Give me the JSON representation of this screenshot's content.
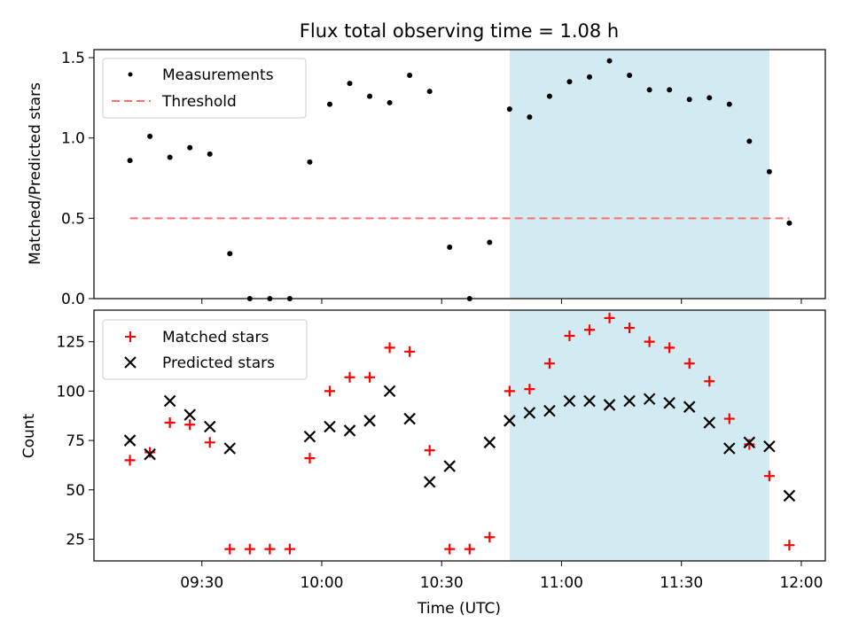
{
  "title": "Flux total observing time = 1.08 h",
  "colors": {
    "highlight": "#add8e6",
    "threshold": "#ff6f6f",
    "measurements": "#000000",
    "matched": "#ff0000",
    "predicted": "#000000"
  },
  "chart_data": [
    {
      "type": "scatter",
      "ylabel": "Matched/Predicted stars",
      "xlim": [
        "09:03",
        "12:06"
      ],
      "ylim": [
        0,
        1.55
      ],
      "yticks": [
        0.0,
        0.5,
        1.0,
        1.5
      ],
      "ytick_labels": [
        "0.0",
        "0.5",
        "1.0",
        "1.5"
      ],
      "shaded_span": [
        "10:47",
        "11:52"
      ],
      "legend": {
        "placement": "top-left",
        "entries": [
          "Measurements",
          "Threshold"
        ]
      },
      "series": [
        {
          "name": "Measurements",
          "marker": "dot",
          "x": [
            "09:12",
            "09:17",
            "09:22",
            "09:27",
            "09:32",
            "09:37",
            "09:42",
            "09:47",
            "09:52",
            "09:57",
            "10:02",
            "10:07",
            "10:12",
            "10:17",
            "10:22",
            "10:27",
            "10:32",
            "10:37",
            "10:42",
            "10:47",
            "10:52",
            "10:57",
            "11:02",
            "11:07",
            "11:12",
            "11:17",
            "11:22",
            "11:27",
            "11:32",
            "11:37",
            "11:42",
            "11:47",
            "11:52",
            "11:57"
          ],
          "y": [
            0.86,
            1.01,
            0.88,
            0.94,
            0.9,
            0.28,
            0.0,
            0.0,
            0.0,
            0.85,
            1.21,
            1.34,
            1.26,
            1.22,
            1.39,
            1.29,
            0.32,
            0.0,
            0.35,
            1.18,
            1.13,
            1.26,
            1.35,
            1.38,
            1.48,
            1.39,
            1.3,
            1.3,
            1.24,
            1.25,
            1.21,
            0.98,
            0.79,
            0.47
          ]
        },
        {
          "name": "Threshold",
          "style": "dashed",
          "x": [
            "09:12",
            "11:57"
          ],
          "y": [
            0.5,
            0.5
          ]
        }
      ]
    },
    {
      "type": "scatter",
      "xlabel": "Time (UTC)",
      "ylabel": "Count",
      "xlim": [
        "09:03",
        "12:06"
      ],
      "ylim": [
        14,
        141
      ],
      "xtick_labels": [
        "09:30",
        "10:00",
        "10:30",
        "11:00",
        "11:30",
        "12:00"
      ],
      "yticks": [
        25,
        50,
        75,
        100,
        125
      ],
      "ytick_labels": [
        "25",
        "50",
        "75",
        "100",
        "125"
      ],
      "shaded_span": [
        "10:47",
        "11:52"
      ],
      "legend": {
        "placement": "top-left",
        "entries": [
          "Matched stars",
          "Predicted stars"
        ]
      },
      "series": [
        {
          "name": "Matched stars",
          "marker": "plus",
          "x": [
            "09:12",
            "09:17",
            "09:22",
            "09:27",
            "09:32",
            "09:37",
            "09:42",
            "09:47",
            "09:52",
            "09:57",
            "10:02",
            "10:07",
            "10:12",
            "10:17",
            "10:22",
            "10:27",
            "10:32",
            "10:37",
            "10:42",
            "10:47",
            "10:52",
            "10:57",
            "11:02",
            "11:07",
            "11:12",
            "11:17",
            "11:22",
            "11:27",
            "11:32",
            "11:37",
            "11:42",
            "11:47",
            "11:52",
            "11:57"
          ],
          "y": [
            65,
            69,
            84,
            83,
            74,
            20,
            20,
            20,
            20,
            66,
            100,
            107,
            107,
            122,
            120,
            70,
            20,
            20,
            26,
            100,
            101,
            114,
            128,
            131,
            137,
            132,
            125,
            122,
            114,
            105,
            86,
            73,
            57,
            22
          ]
        },
        {
          "name": "Predicted stars",
          "marker": "x",
          "x": [
            "09:12",
            "09:17",
            "09:22",
            "09:27",
            "09:32",
            "09:37",
            "09:57",
            "10:02",
            "10:07",
            "10:12",
            "10:17",
            "10:22",
            "10:27",
            "10:32",
            "10:42",
            "10:47",
            "10:52",
            "10:57",
            "11:02",
            "11:07",
            "11:12",
            "11:17",
            "11:22",
            "11:27",
            "11:32",
            "11:37",
            "11:42",
            "11:47",
            "11:52",
            "11:57"
          ],
          "y": [
            75,
            68,
            95,
            88,
            82,
            71,
            77,
            82,
            80,
            85,
            100,
            86,
            54,
            62,
            74,
            85,
            89,
            90,
            95,
            95,
            93,
            95,
            96,
            94,
            92,
            84,
            71,
            74,
            72,
            47
          ]
        }
      ]
    }
  ]
}
